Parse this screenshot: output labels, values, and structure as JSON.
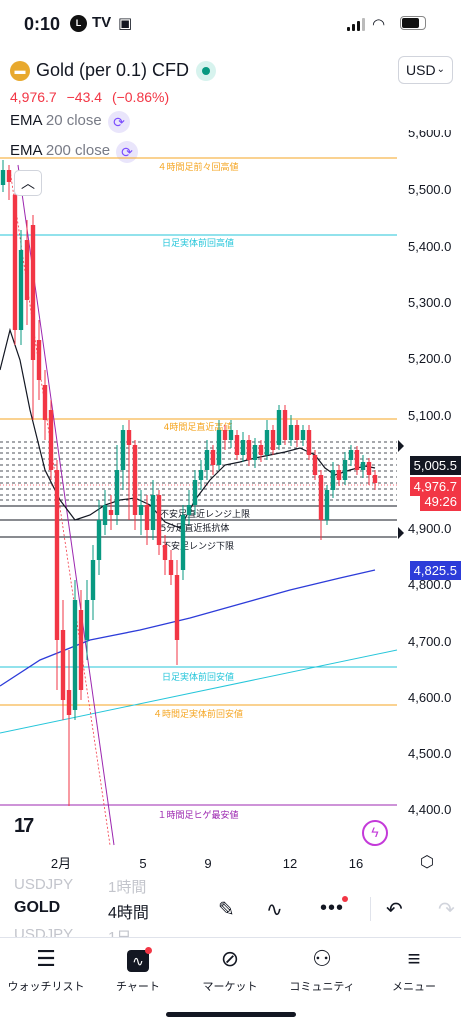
{
  "status_bar": {
    "time": "0:10",
    "icons": [
      "line-icon",
      "tv-icon",
      "bag-icon"
    ]
  },
  "header": {
    "symbol_title": "Gold (per 0.1) CFD",
    "currency": "USD",
    "last_price": "4,976.7",
    "change": "−43.4",
    "change_pct": "(−0.86%)"
  },
  "indicators": [
    {
      "name": "EMA",
      "params": "20 close"
    },
    {
      "name": "EMA",
      "params": "200 close"
    }
  ],
  "chart": {
    "price_axis": [
      "5,600.0",
      "5,500.0",
      "5,400.0",
      "5,300.0",
      "5,200.0",
      "5,100.0",
      "4,900.0",
      "4,800.0",
      "4,700.0",
      "4,600.0",
      "4,500.0",
      "4,400.0"
    ],
    "time_axis": [
      "2月",
      "5",
      "9",
      "12",
      "16"
    ],
    "price_labels": {
      "level": "5,005.5",
      "current": "4,976.7",
      "countdown": "49:26",
      "ema200": "4,825.5"
    },
    "levels": [
      {
        "label": "４時間足前々回高値",
        "color": "#f5a623"
      },
      {
        "label": "日足実体前回高値",
        "color": "#26c6da"
      },
      {
        "label": "4時間足直近高値",
        "color": "#f5a623"
      },
      {
        "label": "不安足直近レンジ上限",
        "color": "#131722"
      },
      {
        "label": "5分足直近抵抗体",
        "color": "#131722"
      },
      {
        "label": "不安足レンジ下限",
        "color": "#131722"
      },
      {
        "label": "日足実体前回安値",
        "color": "#26c6da"
      },
      {
        "label": "４時間足実体前回安値",
        "color": "#f5a623"
      },
      {
        "label": "１時間足ヒゲ最安値",
        "color": "#9c27b0"
      }
    ],
    "colors": {
      "up": "#089981",
      "down": "#f23645",
      "ema20": "#131722",
      "ema200": "#2d3cd9"
    }
  },
  "picker": {
    "ghost_top": {
      "symbol": "USDJPY",
      "interval": "1時間"
    },
    "current": {
      "symbol": "GOLD",
      "interval": "4時間"
    },
    "ghost_bottom": {
      "symbol": "USDJPY",
      "interval": "1日"
    }
  },
  "tabs": [
    {
      "label": "ウォッチリスト",
      "icon": "watchlist-icon"
    },
    {
      "label": "チャート",
      "icon": "chart-icon"
    },
    {
      "label": "マーケット",
      "icon": "compass-icon"
    },
    {
      "label": "コミュニティ",
      "icon": "community-icon"
    },
    {
      "label": "メニュー",
      "icon": "menu-icon"
    }
  ]
}
